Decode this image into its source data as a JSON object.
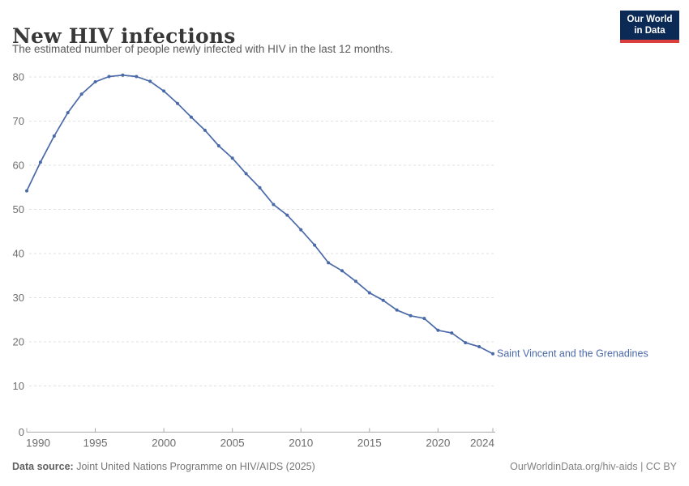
{
  "header": {
    "title": "New HIV infections",
    "subtitle": "The estimated number of people newly infected with HIV in the last 12 months.",
    "logo": {
      "line1": "Our World",
      "line2": "in Data"
    }
  },
  "chart_data": {
    "type": "line",
    "title": "New HIV infections",
    "subtitle": "The estimated number of people newly infected with HIV in the last 12 months.",
    "entity_label": "Saint Vincent and the Grenadines",
    "x": [
      1990,
      1991,
      1992,
      1993,
      1994,
      1995,
      1996,
      1997,
      1998,
      1999,
      2000,
      2001,
      2002,
      2003,
      2004,
      2005,
      2006,
      2007,
      2008,
      2009,
      2010,
      2011,
      2012,
      2013,
      2014,
      2015,
      2016,
      2017,
      2018,
      2019,
      2020,
      2021,
      2022,
      2023,
      2024
    ],
    "series": [
      {
        "name": "Saint Vincent and the Grenadines",
        "values": [
          54.2,
          60.7,
          66.6,
          71.9,
          76.1,
          78.9,
          80.1,
          80.4,
          80.1,
          79.0,
          76.8,
          74.0,
          70.9,
          67.9,
          64.4,
          61.6,
          58.1,
          54.9,
          51.1,
          48.7,
          45.4,
          41.9,
          37.9,
          36.1,
          33.7,
          31.1,
          29.4,
          27.2,
          25.9,
          25.3,
          22.6,
          22.0,
          19.8,
          18.9,
          17.3
        ]
      }
    ],
    "xlabel": "",
    "ylabel": "",
    "xlim": [
      1990,
      2024
    ],
    "ylim": [
      0,
      80
    ],
    "xticks": [
      1990,
      1995,
      2000,
      2005,
      2010,
      2015,
      2020,
      2024
    ],
    "yticks": [
      0,
      10,
      20,
      30,
      40,
      50,
      60,
      70,
      80
    ],
    "grid": "horizontal-dashed",
    "legend_position": "end-of-line-label",
    "markers": true
  },
  "colors": {
    "line": "#4a69a8",
    "entity_label": "#4a69a8",
    "grid": "#e0e0e0",
    "axis": "#a8a8a8",
    "tick_label": "#6e6e6e",
    "title": "#383838",
    "subtitle": "#5a5a5a",
    "logo_bg": "#0c2a56",
    "logo_red": "#dc3e3e"
  },
  "footer": {
    "source_label": "Data source:",
    "source_text": "Joint United Nations Programme on HIV/AIDS (2025)",
    "right_text": "OurWorldinData.org/hiv-aids | CC BY"
  }
}
